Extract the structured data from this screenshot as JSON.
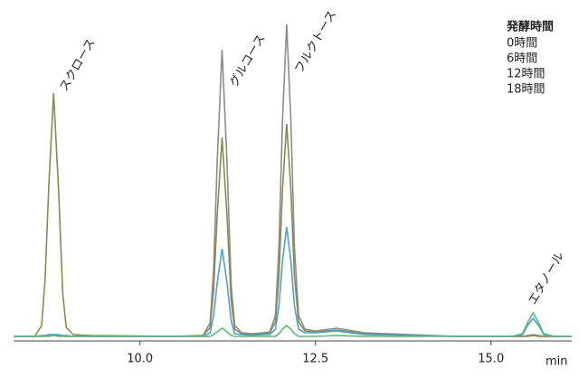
{
  "chart_data": {
    "type": "line",
    "x": [
      8.2,
      8.5,
      8.6,
      8.65,
      8.7,
      8.77,
      8.84,
      8.9,
      8.95,
      9.05,
      9.3,
      10.5,
      10.9,
      11.0,
      11.05,
      11.1,
      11.17,
      11.24,
      11.3,
      11.35,
      11.45,
      11.6,
      11.75,
      11.85,
      11.93,
      11.98,
      12.03,
      12.09,
      12.15,
      12.2,
      12.26,
      12.35,
      12.5,
      12.8,
      13.2,
      14.5,
      15.3,
      15.45,
      15.52,
      15.6,
      15.68,
      15.75,
      15.9,
      16.15
    ],
    "series": [
      {
        "name": "0時間",
        "color": "#8a8a4e",
        "values": [
          1,
          1,
          13,
          65,
          165,
          270,
          165,
          49,
          11,
          3,
          2,
          1,
          2,
          11,
          53,
          135,
          221,
          135,
          40,
          9,
          4,
          3,
          4,
          5,
          17,
          68,
          163,
          236,
          163,
          68,
          17,
          7,
          6,
          8,
          4,
          1,
          1,
          1,
          1,
          2,
          1,
          1,
          1,
          1
        ]
      },
      {
        "name": "6時間",
        "color": "#8c8c8c",
        "values": [
          1,
          1,
          2,
          2,
          3,
          3,
          3,
          2,
          2,
          1,
          1,
          1,
          2,
          16,
          76,
          194,
          318,
          194,
          57,
          13,
          5,
          4,
          5,
          6,
          24,
          100,
          239,
          346,
          239,
          100,
          24,
          9,
          7,
          10,
          5,
          1,
          1,
          1,
          2,
          3,
          2,
          1,
          1,
          1
        ]
      },
      {
        "name": "12時間",
        "color": "#4aa3d0",
        "values": [
          1,
          1,
          1,
          2,
          2,
          3,
          2,
          2,
          1,
          1,
          1,
          1,
          1,
          5,
          24,
          60,
          98,
          60,
          18,
          4,
          3,
          2,
          3,
          3,
          9,
          35,
          84,
          122,
          84,
          35,
          9,
          5,
          5,
          7,
          3,
          1,
          1,
          3,
          13,
          21,
          13,
          3,
          1,
          1
        ]
      },
      {
        "name": "18時間",
        "color": "#5cb87a",
        "values": [
          1,
          1,
          1,
          1,
          1,
          2,
          1,
          1,
          1,
          1,
          1,
          1,
          1,
          1,
          3,
          6,
          10,
          6,
          2,
          1,
          1,
          1,
          1,
          1,
          1,
          4,
          9,
          13,
          9,
          4,
          1,
          1,
          1,
          2,
          1,
          1,
          1,
          4,
          16,
          27,
          16,
          4,
          1,
          1
        ]
      }
    ],
    "legend_title": "発酵時間",
    "annotations": [
      "スクロース",
      "グルコース",
      "フルクトース",
      "エタノール"
    ],
    "xlabel": "min",
    "xlim": [
      8.2,
      16.15
    ],
    "ylim": [
      -2,
      356
    ],
    "xticks": [
      {
        "value": 10,
        "label": "10.0"
      },
      12.5,
      {
        "value": 15,
        "label": "15.0"
      }
    ]
  }
}
